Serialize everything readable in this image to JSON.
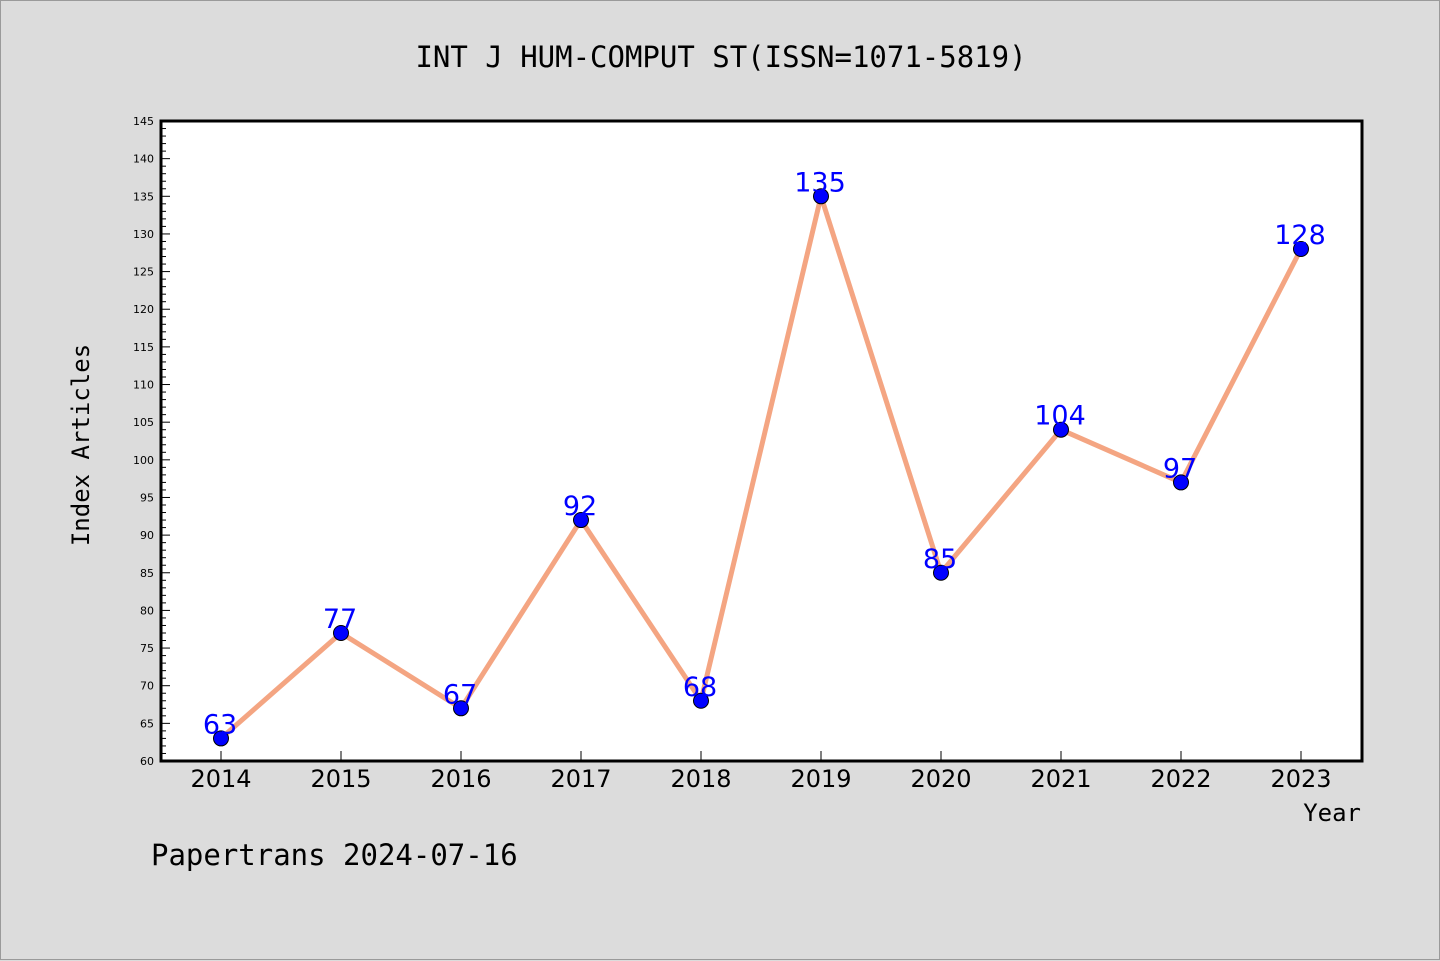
{
  "chart_data": {
    "type": "line",
    "title": "INT J HUM-COMPUT ST(ISSN=1071-5819)",
    "xlabel": "Year",
    "ylabel": "Index Articles",
    "categories": [
      "2014",
      "2015",
      "2016",
      "2017",
      "2018",
      "2019",
      "2020",
      "2021",
      "2022",
      "2023"
    ],
    "values": [
      63,
      77,
      67,
      92,
      68,
      135,
      85,
      104,
      97,
      128
    ],
    "ylim": [
      60,
      145
    ],
    "ytick_step": 5,
    "grid": false,
    "line_color": "#f4a582",
    "marker_color": "#0000ff",
    "label_color": "#0000ff"
  },
  "footer": {
    "credit": "Papertrans 2024-07-16"
  }
}
